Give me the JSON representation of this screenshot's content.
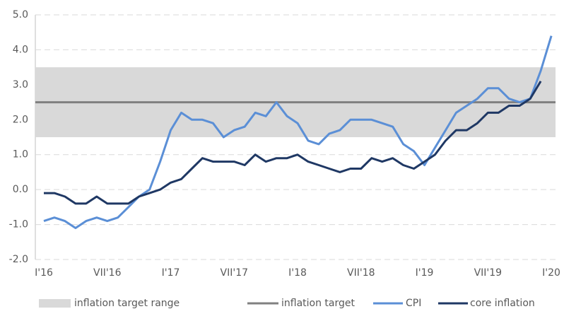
{
  "chart_data": {
    "type": "line",
    "categories": [
      "I'16",
      null,
      null,
      null,
      null,
      null,
      "VII'16",
      null,
      null,
      null,
      null,
      null,
      "I'17",
      null,
      null,
      null,
      null,
      null,
      "VII'17",
      null,
      null,
      null,
      null,
      null,
      "I'18",
      null,
      null,
      null,
      null,
      null,
      "VII'18",
      null,
      null,
      null,
      null,
      null,
      "I'19",
      null,
      null,
      null,
      null,
      null,
      "VII'19",
      null,
      null,
      null,
      null,
      null,
      "I'20"
    ],
    "series": [
      {
        "name": "CPI",
        "color": "#5b8fd6",
        "values": [
          -0.9,
          -0.8,
          -0.9,
          -1.1,
          -0.9,
          -0.8,
          -0.9,
          -0.8,
          -0.5,
          -0.2,
          0.0,
          0.8,
          1.7,
          2.2,
          2.0,
          2.0,
          1.9,
          1.5,
          1.7,
          1.8,
          2.2,
          2.1,
          2.5,
          2.1,
          1.9,
          1.4,
          1.3,
          1.6,
          1.7,
          2.0,
          2.0,
          2.0,
          1.9,
          1.8,
          1.3,
          1.1,
          0.7,
          1.2,
          1.7,
          2.2,
          2.4,
          2.6,
          2.9,
          2.9,
          2.6,
          2.5,
          2.6,
          3.4,
          4.4
        ]
      },
      {
        "name": "core inflation",
        "color": "#1f3864",
        "values": [
          -0.1,
          -0.1,
          -0.2,
          -0.4,
          -0.4,
          -0.2,
          -0.4,
          -0.4,
          -0.4,
          -0.2,
          -0.1,
          0.0,
          0.2,
          0.3,
          0.6,
          0.9,
          0.8,
          0.8,
          0.8,
          0.7,
          1.0,
          0.8,
          0.9,
          0.9,
          1.0,
          0.8,
          0.7,
          0.6,
          0.5,
          0.6,
          0.6,
          0.9,
          0.8,
          0.9,
          0.7,
          0.6,
          0.8,
          1.0,
          1.4,
          1.7,
          1.7,
          1.9,
          2.2,
          2.2,
          2.4,
          2.4,
          2.6,
          3.1,
          null
        ]
      }
    ],
    "bands": [
      {
        "name": "inflation target range",
        "color": "#d9d9d9",
        "from": 1.5,
        "to": 3.5
      }
    ],
    "reference_lines": [
      {
        "name": "inflation target",
        "color": "#808080",
        "value": 2.5
      }
    ],
    "ylim": [
      -2,
      5
    ],
    "yticks": [
      {
        "value": -2,
        "label": "-2.0"
      },
      {
        "value": -1,
        "label": "-1.0"
      },
      {
        "value": 0,
        "label": "0.0"
      },
      {
        "value": 1,
        "label": "1.0"
      },
      {
        "value": 2,
        "label": "2.0"
      },
      {
        "value": 3,
        "label": "3.0"
      },
      {
        "value": 4,
        "label": "4.0"
      },
      {
        "value": 5,
        "label": "5.0"
      }
    ],
    "grid": true,
    "legend": "bottom"
  }
}
